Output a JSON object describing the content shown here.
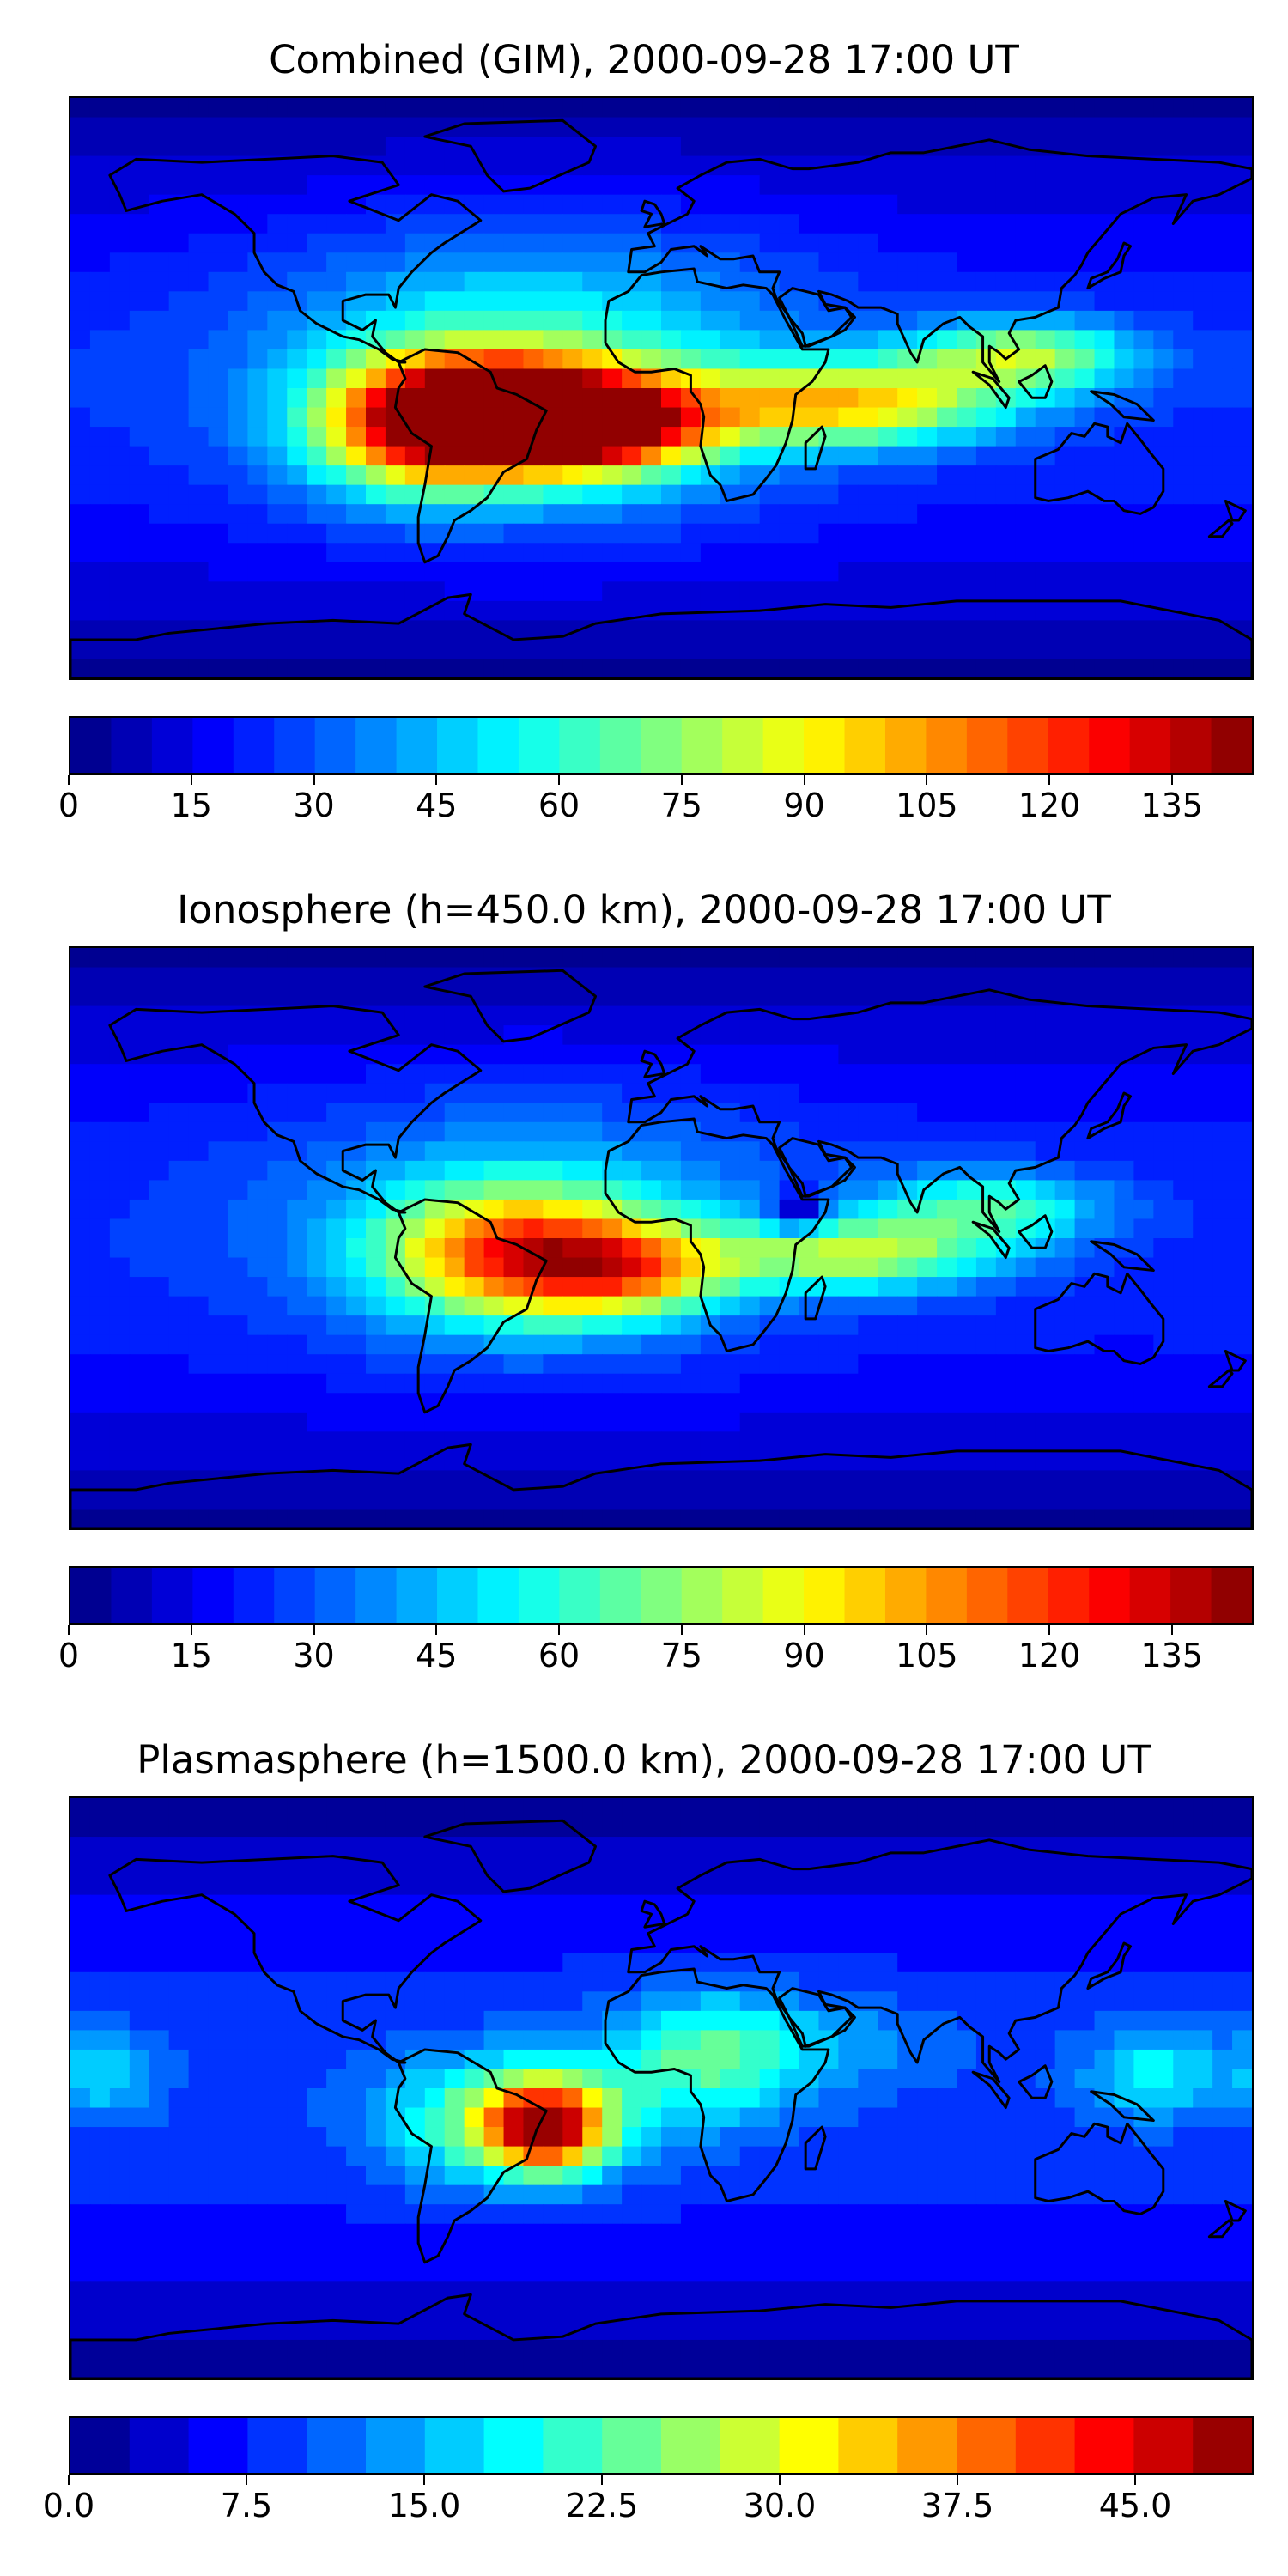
{
  "panels": [
    {
      "title": "Combined (GIM), 2000-09-28 17:00 UT",
      "colorbar": {
        "min": 0,
        "max": 145,
        "levels": 29,
        "ticks": [
          "0",
          "15",
          "30",
          "45",
          "60",
          "75",
          "90",
          "105",
          "120",
          "135"
        ]
      },
      "anomalies": [
        {
          "lon": -45,
          "lat": -8,
          "v": 110,
          "sx": 26,
          "sy": 12
        },
        {
          "lon": -15,
          "lat": -12,
          "v": 75,
          "sx": 22,
          "sy": 10
        },
        {
          "lon": -75,
          "lat": -12,
          "v": 70,
          "sx": 22,
          "sy": 14
        },
        {
          "lon": 55,
          "lat": -5,
          "v": 70,
          "sx": 35,
          "sy": 9
        },
        {
          "lon": 110,
          "lat": 10,
          "v": 55,
          "sx": 25,
          "sy": 8
        },
        {
          "lon": -40,
          "lat": 5,
          "v": 40,
          "sx": 55,
          "sy": 30
        }
      ]
    },
    {
      "title": "Ionosphere  (h=450.0 km), 2000-09-28 17:00 UT",
      "colorbar": {
        "min": 0,
        "max": 145,
        "levels": 29,
        "ticks": [
          "0",
          "15",
          "30",
          "45",
          "60",
          "75",
          "90",
          "105",
          "120",
          "135"
        ]
      },
      "anomalies": [
        {
          "lon": -45,
          "lat": -5,
          "v": 75,
          "sx": 28,
          "sy": 14
        },
        {
          "lon": -10,
          "lat": -10,
          "v": 55,
          "sx": 22,
          "sy": 10
        },
        {
          "lon": 60,
          "lat": -5,
          "v": 55,
          "sx": 30,
          "sy": 8
        },
        {
          "lon": 100,
          "lat": 10,
          "v": 40,
          "sx": 25,
          "sy": 8
        },
        {
          "lon": -40,
          "lat": 5,
          "v": 25,
          "sx": 55,
          "sy": 28
        },
        {
          "lon": 42,
          "lat": 8,
          "v": -35,
          "sx": 6,
          "sy": 5
        }
      ]
    },
    {
      "title": "Plasmasphere (h=1500.0 km), 2000-09-28 17:00 UT",
      "colorbar": {
        "min": 0,
        "max": 50,
        "levels": 20,
        "ticks": [
          "0.0",
          "7.5",
          "15.0",
          "22.5",
          "30.0",
          "37.5",
          "45.0"
        ]
      },
      "anomalies": [
        {
          "lon": -35,
          "lat": -12,
          "v": 30,
          "sx": 12,
          "sy": 9
        },
        {
          "lon": -45,
          "lat": -10,
          "v": 18,
          "sx": 26,
          "sy": 14
        },
        {
          "lon": 15,
          "lat": 10,
          "v": 14,
          "sx": 22,
          "sy": 14
        },
        {
          "lon": 150,
          "lat": 5,
          "v": 10,
          "sx": 15,
          "sy": 10
        },
        {
          "lon": -170,
          "lat": 5,
          "v": 8,
          "sx": 12,
          "sy": 10
        },
        {
          "lon": 60,
          "lat": 15,
          "v": 4,
          "sx": 25,
          "sy": 10
        }
      ]
    }
  ],
  "colors": {
    "land_outline": "#000000",
    "colormap": "jet"
  }
}
